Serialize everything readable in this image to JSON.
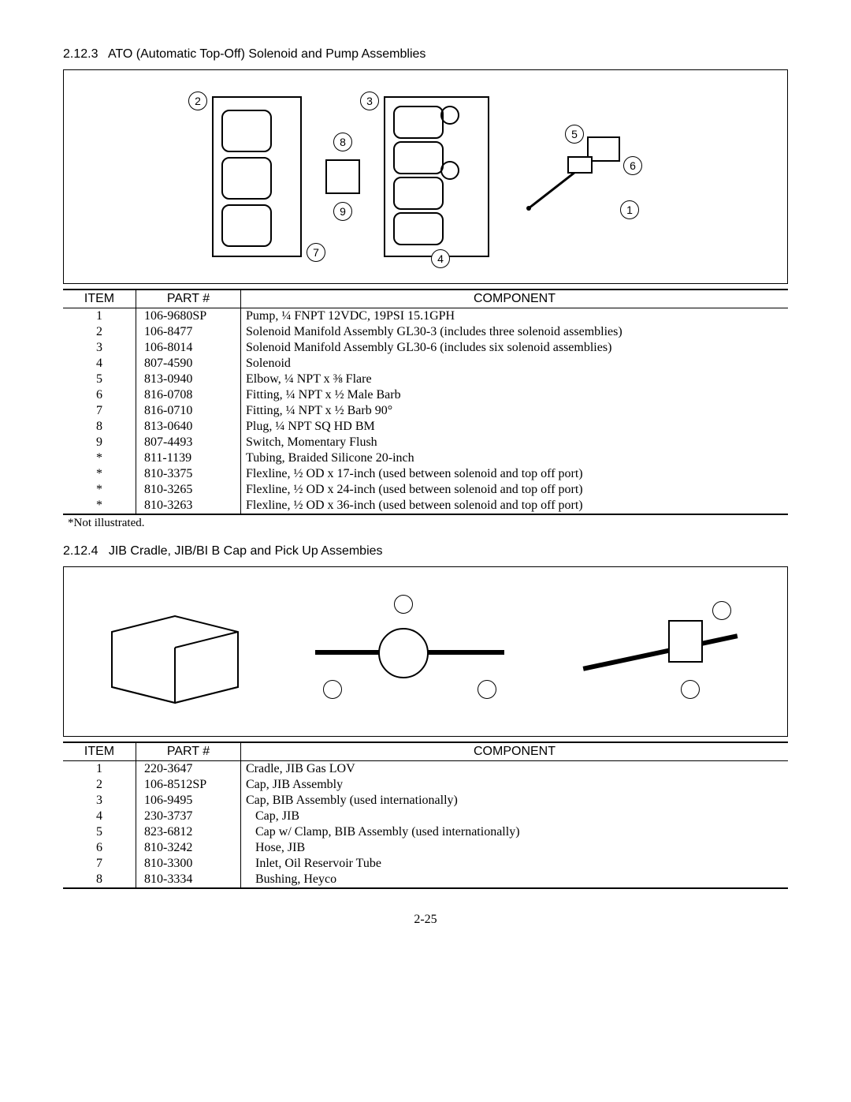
{
  "page_number": "2-25",
  "section1": {
    "number": "2.12.3",
    "title": "ATO (Automatic Top-Off) Solenoid and Pump Assemblies",
    "callouts": [
      "2",
      "8",
      "3",
      "5",
      "6",
      "9",
      "7",
      "4",
      "1"
    ],
    "table": {
      "headers": [
        "ITEM",
        "PART #",
        "COMPONENT"
      ],
      "rows": [
        {
          "item": "1",
          "part": "106-9680SP",
          "comp": "Pump, ¼ FNPT 12VDC, 19PSI  15.1GPH",
          "indent": false
        },
        {
          "item": "2",
          "part": "106-8477",
          "comp": "Solenoid Manifold Assembly GL30-3 (includes three solenoid assemblies)",
          "indent": false
        },
        {
          "item": "3",
          "part": "106-8014",
          "comp": "Solenoid Manifold Assembly GL30-6 (includes six solenoid assemblies)",
          "indent": false
        },
        {
          "item": "4",
          "part": "807-4590",
          "comp": "Solenoid",
          "indent": false
        },
        {
          "item": "5",
          "part": "813-0940",
          "comp": "Elbow, ¼ NPT x ⅜ Flare",
          "indent": false
        },
        {
          "item": "6",
          "part": "816-0708",
          "comp": "Fitting, ¼ NPT x ½ Male Barb",
          "indent": false
        },
        {
          "item": "7",
          "part": "816-0710",
          "comp": "Fitting, ¼ NPT x ½ Barb 90°",
          "indent": false
        },
        {
          "item": "8",
          "part": "813-0640",
          "comp": "Plug, ¼ NPT SQ HD BM",
          "indent": false
        },
        {
          "item": "9",
          "part": "807-4493",
          "comp": "Switch, Momentary Flush",
          "indent": false
        },
        {
          "item": "*",
          "part": "811-1139",
          "comp": "Tubing, Braided Silicone 20-inch",
          "indent": false
        },
        {
          "item": "*",
          "part": "810-3375",
          "comp": "Flexline, ½ OD x 17-inch (used between solenoid and top off port)",
          "indent": false
        },
        {
          "item": "*",
          "part": "810-3265",
          "comp": "Flexline, ½ OD x 24-inch (used between solenoid and top off port)",
          "indent": false
        },
        {
          "item": "*",
          "part": "810-3263",
          "comp": "Flexline, ½ OD x 36-inch (used between solenoid and top off port)",
          "indent": false
        }
      ]
    },
    "footnote": "*Not illustrated."
  },
  "section2": {
    "number": "2.12.4",
    "title": "JIB Cradle, JIB/BI B Cap and Pick Up Assembies",
    "table": {
      "headers": [
        "ITEM",
        "PART #",
        "COMPONENT"
      ],
      "rows": [
        {
          "item": "1",
          "part": "220-3647",
          "comp": "Cradle, JIB Gas LOV",
          "indent": false
        },
        {
          "item": "2",
          "part": "106-8512SP",
          "comp": "Cap, JIB Assembly",
          "indent": false
        },
        {
          "item": "3",
          "part": "106-9495",
          "comp": "Cap, BIB Assembly (used internationally)",
          "indent": false
        },
        {
          "item": "4",
          "part": "230-3737",
          "comp": "Cap, JIB",
          "indent": true
        },
        {
          "item": "5",
          "part": "823-6812",
          "comp": "Cap w/ Clamp, BIB Assembly (used internationally)",
          "indent": true
        },
        {
          "item": "6",
          "part": "810-3242",
          "comp": "Hose, JIB",
          "indent": true
        },
        {
          "item": "7",
          "part": "810-3300",
          "comp": "Inlet, Oil Reservoir Tube",
          "indent": true
        },
        {
          "item": "8",
          "part": "810-3334",
          "comp": "Bushing, Heyco",
          "indent": true
        }
      ]
    }
  }
}
